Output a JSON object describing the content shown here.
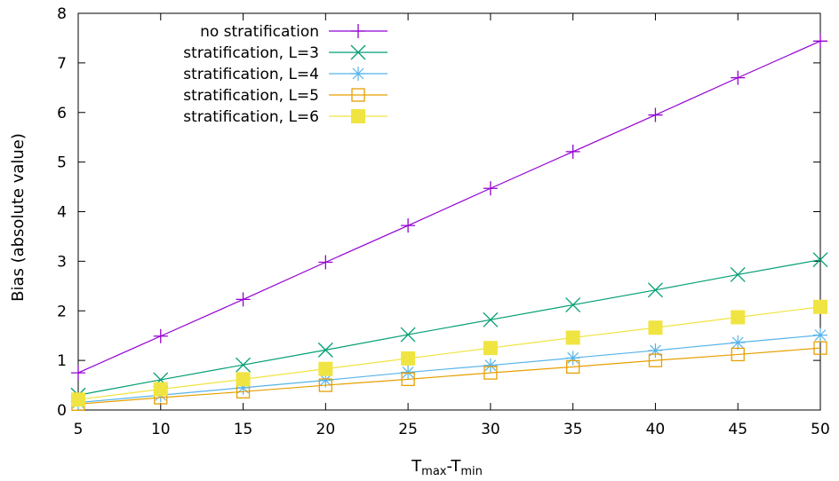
{
  "chart_data": {
    "type": "line",
    "xlabel": {
      "base": "T",
      "sub1": "max",
      "mid": "-T",
      "sub2": "min"
    },
    "ylabel": "Bias (absolute value)",
    "xlim": [
      5,
      50
    ],
    "ylim": [
      0,
      8
    ],
    "xticks": [
      5,
      10,
      15,
      20,
      25,
      30,
      35,
      40,
      45,
      50
    ],
    "yticks": [
      0,
      1,
      2,
      3,
      4,
      5,
      6,
      7,
      8
    ],
    "grid": false,
    "legend_position": "top-left",
    "x": [
      5,
      10,
      15,
      20,
      25,
      30,
      35,
      40,
      45,
      50
    ],
    "series": [
      {
        "name": "no stratification",
        "color": "#9400d3",
        "marker": "plus",
        "values": [
          0.75,
          1.49,
          2.23,
          2.98,
          3.72,
          4.47,
          5.21,
          5.95,
          6.7,
          7.44
        ]
      },
      {
        "name": "stratification, L=3",
        "color": "#009e73",
        "marker": "cross",
        "values": [
          0.3,
          0.61,
          0.91,
          1.21,
          1.52,
          1.82,
          2.12,
          2.42,
          2.73,
          3.03
        ]
      },
      {
        "name": "stratification, L=4",
        "color": "#56b4e9",
        "marker": "star",
        "values": [
          0.15,
          0.3,
          0.45,
          0.6,
          0.76,
          0.9,
          1.05,
          1.2,
          1.36,
          1.51
        ]
      },
      {
        "name": "stratification, L=5",
        "color": "#e69f00",
        "marker": "open-square",
        "values": [
          0.12,
          0.25,
          0.37,
          0.5,
          0.62,
          0.75,
          0.87,
          1.0,
          1.12,
          1.25
        ]
      },
      {
        "name": "stratification, L=6",
        "color": "#f0e442",
        "marker": "filled-square",
        "values": [
          0.21,
          0.42,
          0.62,
          0.83,
          1.04,
          1.25,
          1.46,
          1.66,
          1.87,
          2.08
        ]
      }
    ]
  }
}
